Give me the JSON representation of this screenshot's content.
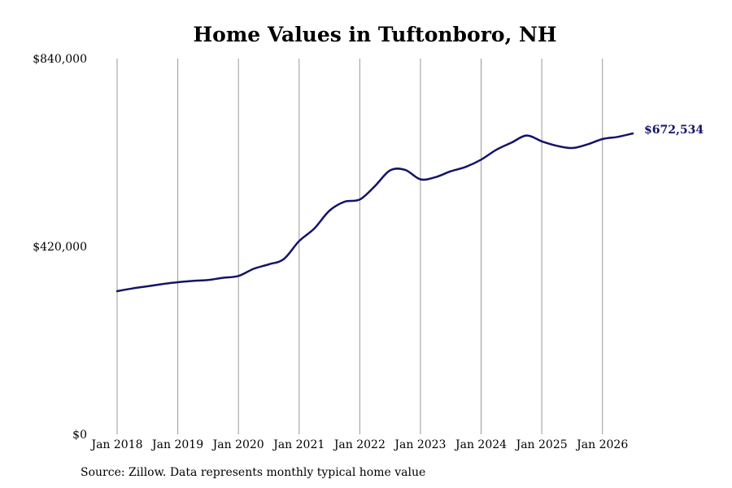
{
  "title": "Home Values in Tuftonboro, NH",
  "source": "Source: Zillow. Data represents monthly typical home value",
  "chart_data": {
    "type": "line",
    "title": "Home Values in Tuftonboro, NH",
    "xlabel": "",
    "ylabel": "",
    "x_range": [
      "2018-01",
      "2026-07"
    ],
    "ylim": [
      0,
      840000
    ],
    "y_ticks": [
      {
        "value": 0,
        "label": "$0"
      },
      {
        "value": 420000,
        "label": "$420,000"
      },
      {
        "value": 840000,
        "label": "$840,000"
      }
    ],
    "x_ticks": [
      {
        "date": "2018-01",
        "label": "Jan 2018"
      },
      {
        "date": "2019-01",
        "label": "Jan 2019"
      },
      {
        "date": "2020-01",
        "label": "Jan 2020"
      },
      {
        "date": "2021-01",
        "label": "Jan 2021"
      },
      {
        "date": "2022-01",
        "label": "Jan 2022"
      },
      {
        "date": "2023-01",
        "label": "Jan 2023"
      },
      {
        "date": "2024-01",
        "label": "Jan 2024"
      },
      {
        "date": "2025-01",
        "label": "Jan 2025"
      },
      {
        "date": "2026-01",
        "label": "Jan 2026"
      }
    ],
    "grid": "vertical",
    "line_color": "#141466",
    "grid_color": "#999999",
    "end_label": "$672,534",
    "series": [
      {
        "points": [
          [
            "2018-01",
            320000
          ],
          [
            "2018-04",
            326000
          ],
          [
            "2018-07",
            331000
          ],
          [
            "2018-10",
            336000
          ],
          [
            "2019-01",
            340000
          ],
          [
            "2019-04",
            343000
          ],
          [
            "2019-07",
            345000
          ],
          [
            "2019-10",
            350000
          ],
          [
            "2020-01",
            354000
          ],
          [
            "2020-04",
            370000
          ],
          [
            "2020-07",
            380000
          ],
          [
            "2020-10",
            392000
          ],
          [
            "2021-01",
            432000
          ],
          [
            "2021-04",
            460000
          ],
          [
            "2021-07",
            500000
          ],
          [
            "2021-10",
            520000
          ],
          [
            "2022-01",
            525000
          ],
          [
            "2022-04",
            555000
          ],
          [
            "2022-07",
            590000
          ],
          [
            "2022-10",
            591000
          ],
          [
            "2023-01",
            570000
          ],
          [
            "2023-04",
            575000
          ],
          [
            "2023-07",
            588000
          ],
          [
            "2023-10",
            598000
          ],
          [
            "2024-01",
            614000
          ],
          [
            "2024-04",
            636000
          ],
          [
            "2024-07",
            652000
          ],
          [
            "2024-10",
            668000
          ],
          [
            "2025-01",
            655000
          ],
          [
            "2025-04",
            645000
          ],
          [
            "2025-07",
            640000
          ],
          [
            "2025-10",
            648000
          ],
          [
            "2026-01",
            660000
          ],
          [
            "2026-04",
            665000
          ],
          [
            "2026-07",
            672534
          ]
        ]
      }
    ]
  }
}
